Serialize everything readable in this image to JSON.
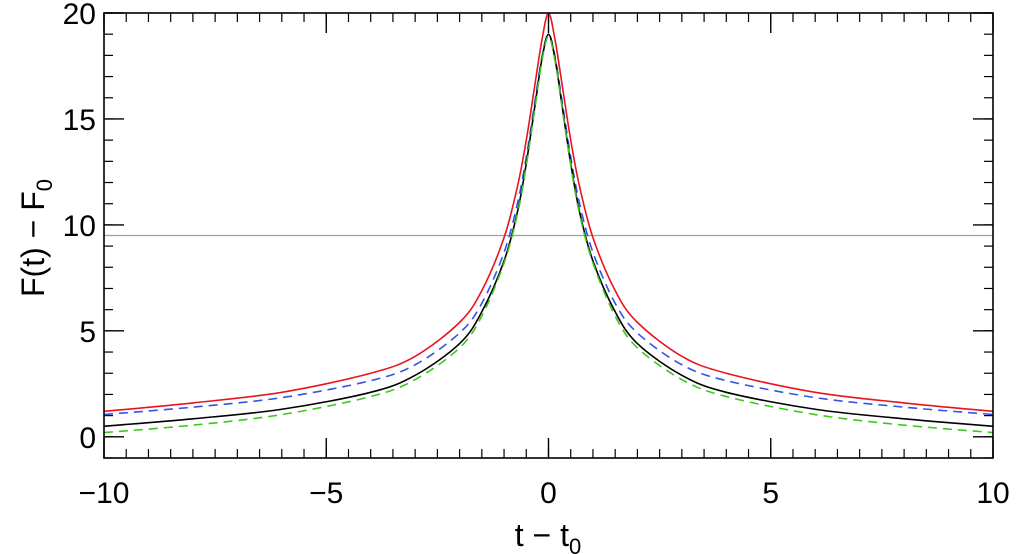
{
  "chart_data": {
    "type": "line",
    "title": "",
    "xlabel": {
      "base": "t − t",
      "sub": "0"
    },
    "ylabel": {
      "base": "F(t) − F",
      "sub": "0"
    },
    "xlim": [
      -10,
      10
    ],
    "ylim": [
      -1,
      20
    ],
    "x_ticks": [
      -10,
      -5,
      0,
      5,
      10
    ],
    "x_tick_labels": [
      "−10",
      "−5",
      "0",
      "5",
      "10"
    ],
    "y_ticks": [
      0,
      5,
      10,
      15,
      20
    ],
    "y_tick_labels": [
      "0",
      "5",
      "10",
      "15",
      "20"
    ],
    "x_minor_step": 0.5,
    "y_minor_step": 1,
    "grid": false,
    "legend": "none",
    "hline": {
      "y": 9.5,
      "color": "#a0a0a0"
    },
    "series": [
      {
        "color": "#e8141e",
        "dash": "solid",
        "x": [
          -10,
          -8,
          -6,
          -4,
          -3,
          -2,
          -1.5,
          -1,
          -0.7,
          -0.5,
          -0.3,
          -0.15,
          0,
          0.15,
          0.3,
          0.5,
          0.7,
          1,
          1.5,
          2,
          3,
          4,
          6,
          8,
          10
        ],
        "y": [
          1.2,
          1.6,
          2.1,
          3.0,
          3.8,
          5.4,
          6.9,
          9.4,
          11.8,
          14.0,
          16.7,
          18.7,
          20.0,
          18.7,
          16.7,
          14.0,
          11.8,
          9.4,
          6.9,
          5.4,
          3.8,
          3.0,
          2.1,
          1.6,
          1.2
        ]
      },
      {
        "color": "#3255e6",
        "dash": "dashed",
        "x": [
          -10,
          -8,
          -6,
          -4,
          -3,
          -2,
          -1.5,
          -1,
          -0.7,
          -0.5,
          -0.3,
          -0.15,
          0,
          0.15,
          0.3,
          0.5,
          0.7,
          1,
          1.5,
          2,
          3,
          4,
          6,
          8,
          10
        ],
        "y": [
          1.05,
          1.4,
          1.85,
          2.65,
          3.4,
          4.9,
          6.3,
          8.7,
          11.0,
          13.2,
          15.9,
          17.9,
          19.0,
          17.9,
          15.9,
          13.2,
          11.0,
          8.7,
          6.3,
          4.9,
          3.4,
          2.65,
          1.85,
          1.4,
          1.05
        ]
      },
      {
        "color": "#000000",
        "dash": "solid",
        "x": [
          -10,
          -8,
          -6,
          -4,
          -3,
          -2,
          -1.5,
          -1,
          -0.7,
          -0.5,
          -0.3,
          -0.15,
          0,
          0.15,
          0.3,
          0.5,
          0.7,
          1,
          1.5,
          2,
          3,
          4,
          6,
          8,
          10
        ],
        "y": [
          0.5,
          0.85,
          1.3,
          2.1,
          2.9,
          4.4,
          5.9,
          8.3,
          10.6,
          12.9,
          15.7,
          17.8,
          19.0,
          17.8,
          15.7,
          12.9,
          10.6,
          8.3,
          5.9,
          4.4,
          2.9,
          2.1,
          1.3,
          0.85,
          0.5
        ]
      },
      {
        "color": "#3ec81e",
        "dash": "dashed",
        "x": [
          -10,
          -8,
          -6,
          -4,
          -3,
          -2,
          -1.5,
          -1,
          -0.7,
          -0.5,
          -0.3,
          -0.15,
          0,
          0.15,
          0.3,
          0.5,
          0.7,
          1,
          1.5,
          2,
          3,
          4,
          6,
          8,
          10
        ],
        "y": [
          0.2,
          0.55,
          1.05,
          1.9,
          2.7,
          4.2,
          5.7,
          8.2,
          10.5,
          12.8,
          15.6,
          17.7,
          18.9,
          17.7,
          15.6,
          12.8,
          10.5,
          8.2,
          5.7,
          4.2,
          2.7,
          1.9,
          1.05,
          0.55,
          0.2
        ]
      }
    ]
  }
}
